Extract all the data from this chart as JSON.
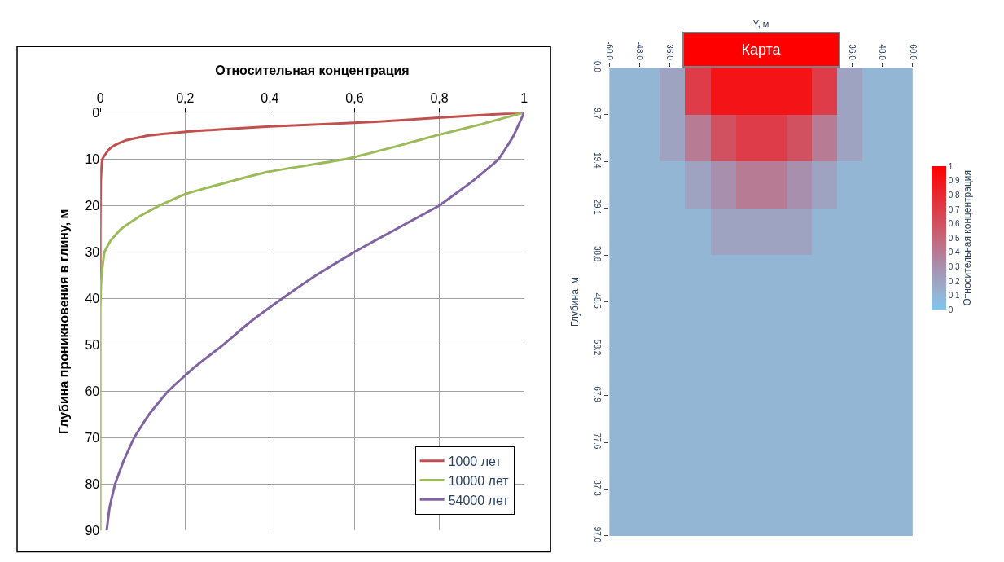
{
  "chart_data": [
    {
      "type": "line",
      "xlabel": "Относительная концентрация",
      "ylabel": "Глубина проникновения в глину, м",
      "xlim": [
        0,
        1
      ],
      "xticks": [
        0,
        {
          "value": 0.2,
          "label": "0,2"
        },
        {
          "value": 0.4,
          "label": "0,4"
        },
        {
          "value": 0.6,
          "label": "0,6"
        },
        {
          "value": 0.8,
          "label": "0,8"
        },
        1
      ],
      "ylim": [
        90,
        0
      ],
      "yticks": [
        0,
        10,
        20,
        30,
        40,
        50,
        60,
        70,
        80,
        90
      ],
      "grid": true,
      "legend": "bottom right",
      "line_style": "solid",
      "series": [
        {
          "name": "1000 лет",
          "color": "#c0504d",
          "x": [
            1,
            0.82,
            0.65,
            0.4,
            0.22,
            0.11,
            0.06,
            0.035,
            0.02,
            0.005,
            0.001,
            0,
            0
          ],
          "values": [
            0,
            1,
            2,
            3,
            4,
            5,
            6,
            7,
            8,
            10,
            15,
            25,
            36
          ]
        },
        {
          "name": "10000 лет",
          "color": "#9bbb59",
          "x": [
            1,
            0.9,
            0.79,
            0.69,
            0.58,
            0.4,
            0.3,
            0.2,
            0.14,
            0.09,
            0.05,
            0.025,
            0.01,
            0.003,
            0,
            0
          ],
          "values": [
            0,
            2.5,
            5,
            7.5,
            10,
            12.7,
            15,
            17.6,
            20,
            22.5,
            25,
            27.5,
            30,
            35,
            42,
            90
          ]
        },
        {
          "name": "54000 лет",
          "color": "#8064a2",
          "x": [
            1,
            0.975,
            0.94,
            0.875,
            0.8,
            0.7,
            0.6,
            0.51,
            0.43,
            0.355,
            0.29,
            0.22,
            0.16,
            0.115,
            0.08,
            0.055,
            0.035,
            0.022,
            0.015
          ],
          "values": [
            0,
            5,
            10,
            15,
            20,
            25,
            30,
            35,
            40,
            45,
            50,
            55,
            60,
            65,
            70,
            75,
            80,
            85,
            90
          ]
        }
      ]
    },
    {
      "type": "heatmap",
      "xlabel": "Y, м",
      "ylabel": "Глубина, м",
      "clabel": "Относительная концентрация",
      "annotations": [
        "Карта"
      ],
      "xlim": [
        -60,
        60
      ],
      "xticks": [
        {
          "value": -60,
          "label": "-60.0"
        },
        {
          "value": -48,
          "label": "-48.0"
        },
        {
          "value": -36,
          "label": "-36.0"
        },
        {
          "value": 36,
          "label": "36.0"
        },
        {
          "value": 48,
          "label": "48.0"
        },
        {
          "value": 60,
          "label": "60.0"
        }
      ],
      "ylim": [
        97,
        0
      ],
      "yticks": [
        {
          "value": 0,
          "label": "0.0"
        },
        9.7,
        19.4,
        29.1,
        38.8,
        48.5,
        58.2,
        67.9,
        77.6,
        87.3,
        {
          "value": 97,
          "label": "97.0"
        }
      ],
      "clim": [
        0,
        1
      ],
      "cticks": [
        0,
        0.1,
        0.2,
        0.3,
        0.4,
        0.5,
        0.6,
        0.7,
        0.8,
        0.9,
        1
      ],
      "cells": [
        [
          0.1,
          0.1,
          0.2,
          0.7,
          0.9,
          0.9,
          0.9,
          0.9,
          0.7,
          0.2,
          0.1,
          0.1
        ],
        [
          0.1,
          0.1,
          0.2,
          0.4,
          0.6,
          0.7,
          0.7,
          0.6,
          0.4,
          0.2,
          0.1,
          0.1
        ],
        [
          0.1,
          0.1,
          0.1,
          0.2,
          0.3,
          0.4,
          0.4,
          0.3,
          0.2,
          0.1,
          0.1,
          0.1
        ],
        [
          0.1,
          0.1,
          0.1,
          0.1,
          0.2,
          0.2,
          0.2,
          0.2,
          0.1,
          0.1,
          0.1,
          0.1
        ],
        [
          0.1,
          0.1,
          0.1,
          0.1,
          0.1,
          0.1,
          0.1,
          0.1,
          0.1,
          0.1,
          0.1,
          0.1
        ],
        [
          0.1,
          0.1,
          0.1,
          0.1,
          0.1,
          0.1,
          0.1,
          0.1,
          0.1,
          0.1,
          0.1,
          0.1
        ],
        [
          0.1,
          0.1,
          0.1,
          0.1,
          0.1,
          0.1,
          0.1,
          0.1,
          0.1,
          0.1,
          0.1,
          0.1
        ],
        [
          0.1,
          0.1,
          0.1,
          0.1,
          0.1,
          0.1,
          0.1,
          0.1,
          0.1,
          0.1,
          0.1,
          0.1
        ],
        [
          0.1,
          0.1,
          0.1,
          0.1,
          0.1,
          0.1,
          0.1,
          0.1,
          0.1,
          0.1,
          0.1,
          0.1
        ],
        [
          0.1,
          0.1,
          0.1,
          0.1,
          0.1,
          0.1,
          0.1,
          0.1,
          0.1,
          0.1,
          0.1,
          0.1
        ]
      ]
    }
  ]
}
